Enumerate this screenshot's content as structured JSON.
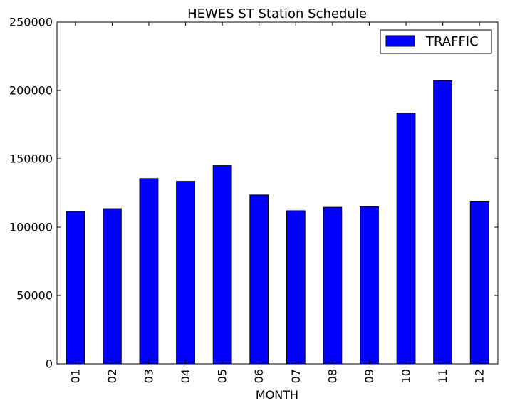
{
  "chart_data": {
    "type": "bar",
    "title": "HEWES ST Station Schedule",
    "xlabel": "MONTH",
    "ylabel": "",
    "categories": [
      "01",
      "02",
      "03",
      "04",
      "05",
      "06",
      "07",
      "08",
      "09",
      "10",
      "11",
      "12"
    ],
    "series": [
      {
        "name": "TRAFFIC",
        "color": "#0000ff",
        "values": [
          111500,
          113500,
          135500,
          133500,
          145000,
          123500,
          112000,
          114500,
          115000,
          183500,
          207000,
          119000
        ]
      }
    ],
    "ylim": [
      0,
      250000
    ],
    "yticks": [
      "0",
      "50000",
      "100000",
      "150000",
      "200000",
      "250000"
    ],
    "legend_position": "top-right",
    "grid": false
  }
}
